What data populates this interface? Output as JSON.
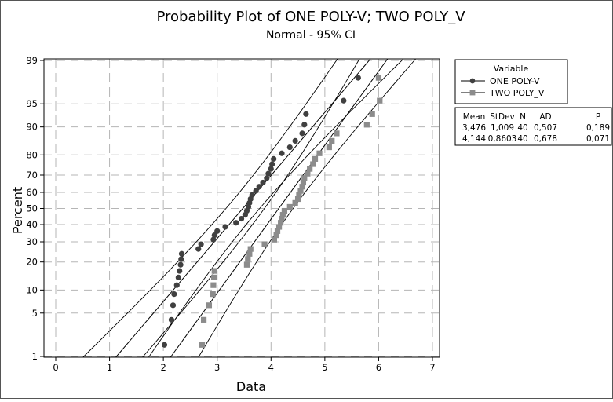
{
  "chart_data": {
    "type": "scatter",
    "title": "Probability Plot of ONE POLY-V; TWO POLY_V",
    "subtitle": "Normal - 95% CI",
    "xlabel": "Data",
    "ylabel": "Percent",
    "xlim": [
      0,
      7
    ],
    "xticks": [
      "0",
      "1",
      "2",
      "3",
      "4",
      "5",
      "6",
      "7"
    ],
    "yticks": [
      1,
      5,
      10,
      20,
      30,
      40,
      50,
      60,
      70,
      80,
      90,
      95,
      99
    ],
    "ytick_labels": [
      "1",
      "5",
      "10",
      "20",
      "30",
      "40",
      "50",
      "60",
      "70",
      "80",
      "90",
      "95",
      "99"
    ],
    "y_scale": "normal probability",
    "grid": true,
    "confidence_level": "95%",
    "legend": {
      "title": "Variable",
      "position": "right",
      "entries": [
        "ONE POLY-V",
        "TWO POLY_V"
      ]
    },
    "stats_table": {
      "headers": [
        "Mean",
        "StDev",
        "N",
        "AD",
        "P"
      ],
      "rows": [
        [
          "3,476",
          "1,009",
          "40",
          "0,507",
          "0,189"
        ],
        [
          "4,144",
          "0,8603",
          "40",
          "0,678",
          "0,071"
        ]
      ]
    },
    "series": [
      {
        "name": "ONE POLY-V",
        "color": "#404040",
        "marker": "circle",
        "mean": 3.476,
        "stdev": 1.009,
        "x": [
          2.02,
          2.15,
          2.18,
          2.2,
          2.25,
          2.28,
          2.3,
          2.32,
          2.33,
          2.34,
          2.65,
          2.7,
          2.93,
          2.95,
          3.0,
          3.15,
          3.35,
          3.45,
          3.52,
          3.55,
          3.58,
          3.6,
          3.62,
          3.65,
          3.72,
          3.78,
          3.85,
          3.92,
          3.95,
          4.0,
          4.02,
          4.05,
          4.2,
          4.35,
          4.45,
          4.58,
          4.62,
          4.65,
          5.35,
          5.62
        ],
        "y": [
          1.6,
          4.0,
          6.4,
          8.9,
          11.4,
          13.9,
          16.3,
          18.8,
          21.3,
          23.8,
          26.2,
          28.7,
          31.2,
          33.7,
          36.1,
          38.6,
          41.1,
          43.6,
          46.0,
          48.5,
          51.0,
          53.5,
          55.9,
          58.4,
          60.9,
          63.4,
          65.8,
          68.3,
          70.8,
          73.3,
          75.7,
          78.2,
          80.7,
          83.2,
          85.6,
          88.1,
          90.6,
          93.1,
          95.5,
          98.0
        ]
      },
      {
        "name": "TWO POLY_V",
        "color": "#8c8c8c",
        "marker": "square",
        "mean": 4.144,
        "stdev": 0.8603,
        "x": [
          2.72,
          2.75,
          2.85,
          2.92,
          2.93,
          2.94,
          2.95,
          3.55,
          3.57,
          3.6,
          3.62,
          3.88,
          4.06,
          4.1,
          4.12,
          4.15,
          4.18,
          4.2,
          4.22,
          4.25,
          4.35,
          4.45,
          4.5,
          4.52,
          4.55,
          4.58,
          4.6,
          4.62,
          4.68,
          4.72,
          4.78,
          4.82,
          4.9,
          5.08,
          5.13,
          5.22,
          5.78,
          5.88,
          6.02,
          6.0
        ],
        "y": [
          1.6,
          4.0,
          6.4,
          8.9,
          11.4,
          13.9,
          16.3,
          18.8,
          21.3,
          23.8,
          26.2,
          28.7,
          31.2,
          33.7,
          36.1,
          38.6,
          41.1,
          43.6,
          46.0,
          48.5,
          51.0,
          53.5,
          55.9,
          58.4,
          60.9,
          63.4,
          65.8,
          68.3,
          70.8,
          73.3,
          75.7,
          78.2,
          80.7,
          83.2,
          85.6,
          88.1,
          90.6,
          93.1,
          95.5,
          98.0
        ]
      }
    ]
  }
}
